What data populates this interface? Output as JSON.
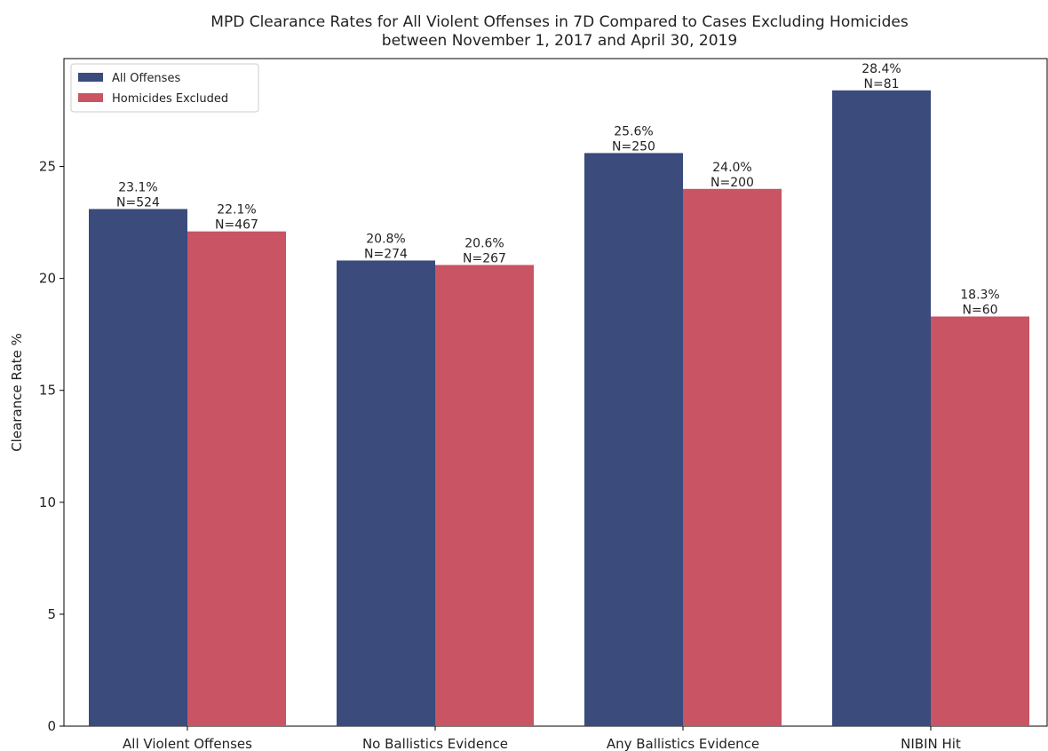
{
  "chart_data": {
    "type": "bar",
    "title": "MPD Clearance Rates for All Violent Offenses in 7D Compared to Cases Excluding Homicides",
    "subtitle": "between November 1, 2017 and April 30, 2019",
    "y_label": "Clearance Rate %",
    "categories": [
      "All Violent Offenses",
      "No Ballistics Evidence",
      "Any Ballistics Evidence",
      "NIBIN Hit"
    ],
    "series": [
      {
        "name": "All Offenses",
        "color": "#3a4b7c",
        "values": [
          23.1,
          20.8,
          25.6,
          28.4
        ],
        "value_labels": [
          "23.1%",
          "20.8%",
          "25.6%",
          "28.4%"
        ],
        "count_labels": [
          "N=524",
          "N=274",
          "N=250",
          "N=81"
        ]
      },
      {
        "name": "Homicides Excluded",
        "color": "#c85464",
        "values": [
          22.1,
          20.6,
          24.0,
          18.3
        ],
        "value_labels": [
          "22.1%",
          "20.6%",
          "24.0%",
          "18.3%"
        ],
        "count_labels": [
          "N=467",
          "N=267",
          "N=200",
          "N=60"
        ]
      }
    ],
    "ylim": [
      0,
      29.82
    ],
    "yticks": [
      0,
      5,
      10,
      15,
      20,
      25
    ],
    "legend": "upper left"
  }
}
